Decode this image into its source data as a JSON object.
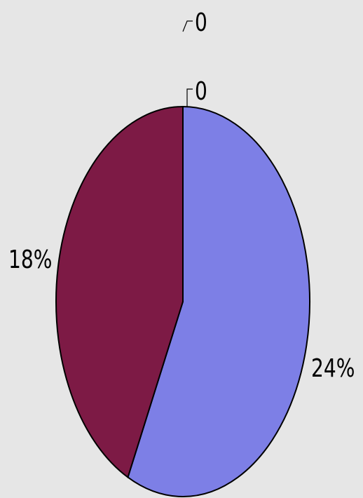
{
  "chart_data": {
    "type": "pie",
    "labels_shown": [
      "0",
      "0",
      "24%",
      "18%"
    ],
    "slices": [
      {
        "value": 0,
        "label": "0",
        "color": "#7d7fe6"
      },
      {
        "value": 0,
        "label": "0",
        "color": "#7d7fe6"
      },
      {
        "value": 24,
        "label": "24%",
        "color": "#7d7fe6"
      },
      {
        "value": 18,
        "label": "18%",
        "color": "#7d1a45"
      }
    ],
    "legend": "none",
    "grid": false
  }
}
